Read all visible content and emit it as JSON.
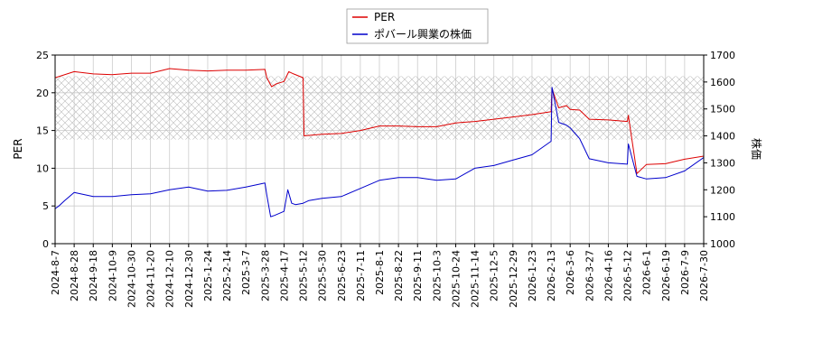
{
  "chart_data": {
    "type": "line",
    "legend": {
      "placement": "top-center",
      "entries": [
        "PER",
        "ポバール興業の株価"
      ]
    },
    "grid": true,
    "y_left": {
      "label": "PER",
      "lim": [
        0,
        25
      ],
      "ticks": [
        "0",
        "5",
        "10",
        "15",
        "20",
        "25"
      ]
    },
    "y_right": {
      "label": "株価",
      "lim": [
        1000,
        1700
      ],
      "ticks": [
        "1000",
        "1100",
        "1200",
        "1300",
        "1400",
        "1500",
        "1600",
        "1700"
      ]
    },
    "x_ticks": [
      "2024-8-7",
      "2024-8-28",
      "2024-9-18",
      "2024-10-9",
      "2024-10-30",
      "2024-11-20",
      "2024-12-10",
      "2024-12-30",
      "2025-1-24",
      "2025-2-14",
      "2025-3-7",
      "2025-3-28",
      "2025-4-17",
      "2025-5-12",
      "2025-5-30",
      "2025-6-23",
      "2025-7-11",
      "2025-8-1",
      "2025-8-22",
      "2025-9-11",
      "2025-10-3",
      "2025-10-24",
      "2025-11-14",
      "2025-12-5",
      "2025-12-29",
      "2026-1-23",
      "2026-2-13",
      "2026-3-6",
      "2026-3-27",
      "2026-4-16",
      "2026-5-12",
      "2026-6-1",
      "2026-6-19",
      "2026-7-9",
      "2026-7-30"
    ],
    "hatched_band_per": [
      13.8,
      22.2
    ],
    "colors": {
      "per": "#dd0000",
      "price": "#0000cc",
      "band": "#bbbbbb",
      "grid": "#cccccc"
    },
    "series": [
      {
        "name": "PER",
        "axis": "left",
        "x_index": [
          0,
          1,
          2,
          3,
          4,
          5,
          6,
          7,
          8,
          9,
          10,
          11,
          11.1,
          11.35,
          11.6,
          12,
          12.25,
          12.5,
          13,
          13.05,
          14,
          15,
          16,
          17,
          18,
          19,
          20,
          21,
          22,
          23,
          24,
          25,
          26,
          26.05,
          26.4,
          26.8,
          27,
          27.5,
          28,
          29,
          30,
          30.05,
          30.5,
          31,
          32,
          33,
          34,
          34.9
        ],
        "values": [
          22.0,
          22.8,
          22.5,
          22.4,
          22.6,
          22.6,
          23.2,
          23.0,
          22.9,
          23.0,
          23.0,
          23.1,
          22.0,
          20.8,
          21.2,
          21.5,
          22.8,
          22.5,
          22.0,
          14.3,
          14.5,
          14.6,
          15.0,
          15.6,
          15.6,
          15.5,
          15.5,
          16.0,
          16.2,
          16.5,
          16.8,
          17.1,
          17.5,
          20.5,
          18.0,
          18.3,
          17.8,
          17.7,
          16.5,
          16.4,
          16.2,
          17.0,
          9.3,
          10.5,
          10.6,
          11.2,
          11.6,
          11.6
        ]
      },
      {
        "name": "ポバール興業の株価",
        "axis": "right",
        "x_index": [
          0,
          0.2,
          0.5,
          1,
          2,
          3,
          4,
          5,
          6,
          7,
          8,
          9,
          10,
          11,
          11.1,
          11.3,
          11.5,
          12,
          12.2,
          12.4,
          12.6,
          13,
          13.3,
          14,
          15,
          16,
          17,
          18,
          19,
          20,
          21,
          22,
          23,
          24,
          25,
          26,
          26.05,
          26.4,
          26.8,
          27,
          27.5,
          28,
          29,
          30,
          30.05,
          30.5,
          31,
          32,
          33,
          34,
          34.9
        ],
        "values": [
          1130,
          1140,
          1160,
          1190,
          1175,
          1175,
          1182,
          1185,
          1200,
          1210,
          1195,
          1198,
          1210,
          1225,
          1180,
          1100,
          1105,
          1120,
          1200,
          1150,
          1145,
          1150,
          1160,
          1168,
          1175,
          1205,
          1235,
          1245,
          1245,
          1235,
          1240,
          1280,
          1290,
          1310,
          1330,
          1380,
          1580,
          1450,
          1440,
          1430,
          1390,
          1315,
          1300,
          1295,
          1370,
          1250,
          1240,
          1245,
          1270,
          1320,
          1340
        ]
      }
    ]
  }
}
